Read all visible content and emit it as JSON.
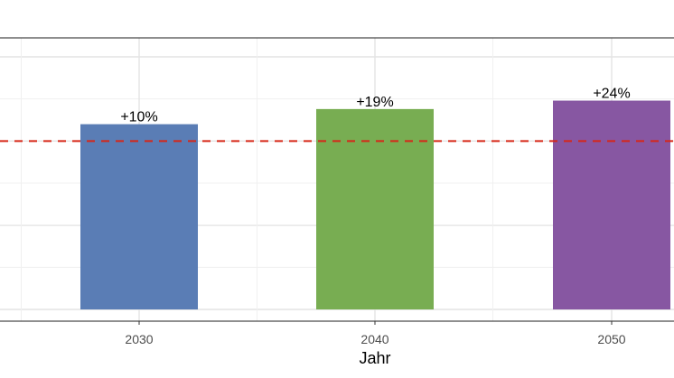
{
  "chart_data": {
    "type": "bar",
    "categories": [
      "2030",
      "2040",
      "2050"
    ],
    "values": [
      110,
      119,
      124
    ],
    "value_labels": [
      "+10%",
      "+19%",
      "+24%"
    ],
    "colors": [
      "#5a7db5",
      "#78ad52",
      "#8757a2"
    ],
    "reference_line": {
      "value": 100,
      "color": "#d62718",
      "style": "dashed"
    },
    "ylim": [
      0,
      150
    ],
    "title": "",
    "xlabel": "Jahr",
    "ylabel": "",
    "grid": true,
    "legend": "none"
  }
}
